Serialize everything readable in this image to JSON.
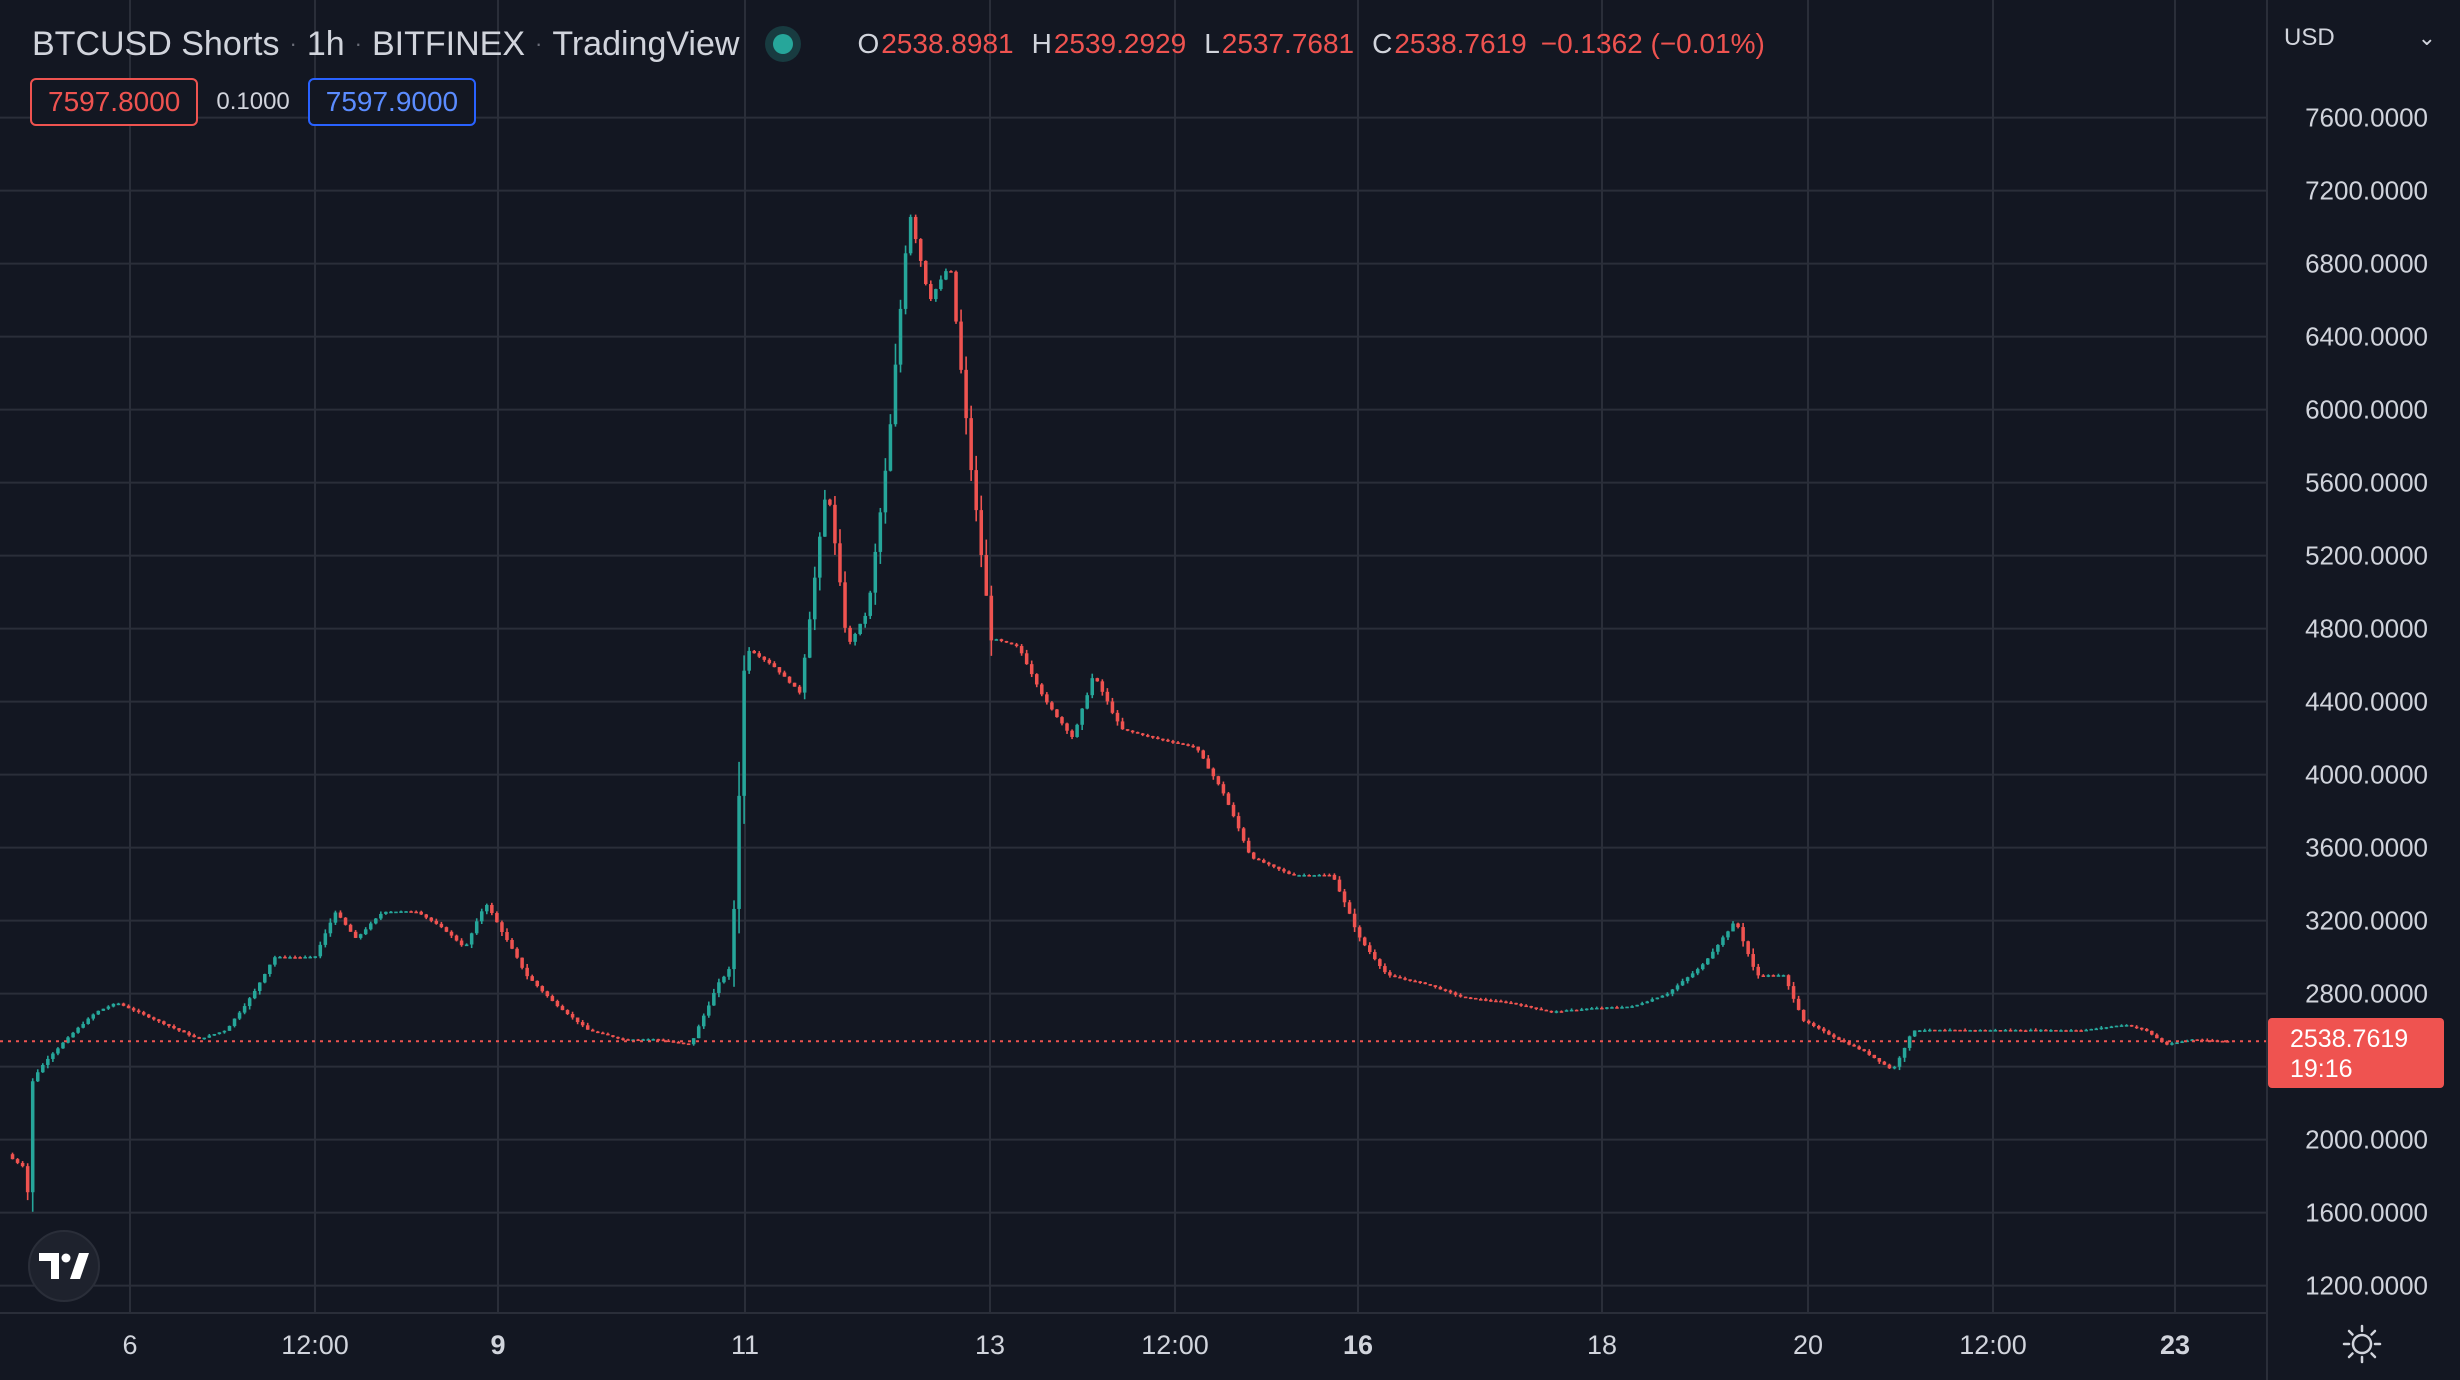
{
  "header": {
    "symbol": "BTCUSD Shorts",
    "interval": "1h",
    "exchange": "BITFINEX",
    "source": "TradingView",
    "ohlc": {
      "o_label": "O",
      "o_value": "2538.8981",
      "h_label": "H",
      "h_value": "2539.2929",
      "l_label": "L",
      "l_value": "2537.7681",
      "c_label": "C",
      "c_value": "2538.7619",
      "change": "−0.1362 (−0.01%)"
    }
  },
  "trade": {
    "sell": "7597.8000",
    "spread": "0.1000",
    "buy": "7597.9000"
  },
  "currency": "USD",
  "last_price": {
    "value": "2538.7619",
    "countdown": "19:16"
  },
  "colors": {
    "background": "#131722",
    "grid": "#2a2e39",
    "up": "#26a69a",
    "down": "#ef5350",
    "text": "#d1d4dc",
    "buy": "#2962ff"
  },
  "icons": {
    "logo": "tradingview-logo-icon",
    "settings": "settings-sun-icon",
    "status": "market-status-dot-icon",
    "dropdown": "chevron-down-icon"
  },
  "chart_data": {
    "type": "candlestick",
    "title": "BTCUSD Shorts",
    "interval": "1h",
    "ylim": [
      1000,
      7800
    ],
    "last_price_line": 2538.7619,
    "y_ticks": [
      1200,
      1600,
      2000,
      2400,
      2800,
      3200,
      3600,
      4000,
      4400,
      4800,
      5200,
      5600,
      6000,
      6400,
      6800,
      7200,
      7600
    ],
    "y_tick_labels": [
      "1200.0000",
      "1600.0000",
      "2000.0000",
      "2400.0000",
      "2800.0000",
      "3200.0000",
      "3600.0000",
      "4000.0000",
      "4400.0000",
      "4800.0000",
      "5200.0000",
      "5600.0000",
      "6000.0000",
      "6400.0000",
      "6800.0000",
      "7200.0000",
      "7600.0000"
    ],
    "x_ticks": [
      {
        "t": 0,
        "label": "6",
        "bold": false
      },
      {
        "t": 1,
        "label": "12:00",
        "bold": false
      },
      {
        "t": 2,
        "label": "9",
        "bold": true
      },
      {
        "t": 3,
        "label": "11",
        "bold": false
      },
      {
        "t": 4,
        "label": "13",
        "bold": false
      },
      {
        "t": 5,
        "label": "12:00",
        "bold": false
      },
      {
        "t": 6,
        "label": "16",
        "bold": true
      },
      {
        "t": 7,
        "label": "18",
        "bold": false
      },
      {
        "t": 8,
        "label": "20",
        "bold": false
      },
      {
        "t": 9,
        "label": "12:00",
        "bold": false
      },
      {
        "t": 10,
        "label": "23",
        "bold": true
      }
    ],
    "price_path_approx": [
      [
        0,
        1920
      ],
      [
        0.05,
        1900
      ],
      [
        0.12,
        1880
      ],
      [
        0.25,
        1850
      ],
      [
        0.3,
        1700
      ],
      [
        0.33,
        2250
      ],
      [
        0.4,
        2350
      ],
      [
        0.6,
        2450
      ],
      [
        1.0,
        2600
      ],
      [
        1.3,
        2700
      ],
      [
        1.6,
        2750
      ],
      [
        2.2,
        2650
      ],
      [
        2.8,
        2550
      ],
      [
        3.2,
        2600
      ],
      [
        3.6,
        2800
      ],
      [
        3.9,
        3000
      ],
      [
        4.5,
        3000
      ],
      [
        4.8,
        3250
      ],
      [
        5.1,
        3100
      ],
      [
        5.5,
        3250
      ],
      [
        6.0,
        3250
      ],
      [
        6.4,
        3150
      ],
      [
        6.7,
        3050
      ],
      [
        7.0,
        3300
      ],
      [
        7.3,
        3100
      ],
      [
        7.6,
        2900
      ],
      [
        8.0,
        2750
      ],
      [
        8.5,
        2600
      ],
      [
        9.0,
        2550
      ],
      [
        9.5,
        2550
      ],
      [
        10.0,
        2520
      ],
      [
        10.4,
        2850
      ],
      [
        10.6,
        2950
      ],
      [
        10.8,
        4700
      ],
      [
        11.2,
        4600
      ],
      [
        11.6,
        4450
      ],
      [
        12.0,
        5600
      ],
      [
        12.3,
        4700
      ],
      [
        12.6,
        4900
      ],
      [
        12.9,
        5800
      ],
      [
        13.2,
        7100
      ],
      [
        13.5,
        6600
      ],
      [
        13.8,
        6800
      ],
      [
        14.1,
        5700
      ],
      [
        14.4,
        4750
      ],
      [
        14.8,
        4700
      ],
      [
        15.2,
        4400
      ],
      [
        15.6,
        4200
      ],
      [
        15.9,
        4550
      ],
      [
        16.3,
        4250
      ],
      [
        16.8,
        4200
      ],
      [
        17.4,
        4150
      ],
      [
        17.8,
        3900
      ],
      [
        18.2,
        3550
      ],
      [
        18.8,
        3450
      ],
      [
        19.4,
        3450
      ],
      [
        19.8,
        3100
      ],
      [
        20.2,
        2900
      ],
      [
        20.8,
        2850
      ],
      [
        21.3,
        2780
      ],
      [
        22.0,
        2750
      ],
      [
        22.6,
        2700
      ],
      [
        23.2,
        2720
      ],
      [
        23.8,
        2730
      ],
      [
        24.3,
        2800
      ],
      [
        24.8,
        2950
      ],
      [
        25.3,
        3200
      ],
      [
        25.6,
        2900
      ],
      [
        26.0,
        2900
      ],
      [
        26.3,
        2650
      ],
      [
        26.8,
        2550
      ],
      [
        27.2,
        2480
      ],
      [
        27.6,
        2380
      ],
      [
        27.9,
        2600
      ],
      [
        28.6,
        2600
      ],
      [
        29.5,
        2600
      ],
      [
        30.4,
        2600
      ],
      [
        31.0,
        2630
      ],
      [
        31.3,
        2600
      ],
      [
        31.6,
        2520
      ],
      [
        32.0,
        2550
      ],
      [
        32.5,
        2538
      ]
    ]
  }
}
